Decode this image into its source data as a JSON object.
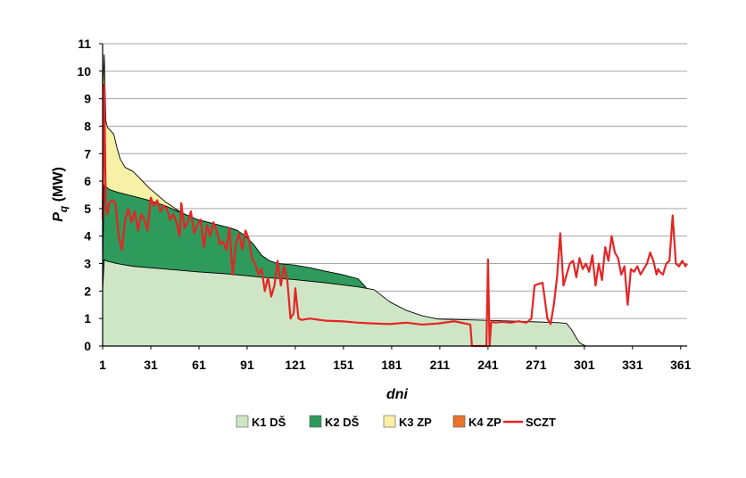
{
  "chart_data": {
    "type": "area",
    "xlabel": "dni",
    "ylabel": "P",
    "ylabel_sub": "q",
    "ylabel_unit": " (MW)",
    "xlim": [
      1,
      365
    ],
    "ylim": [
      0,
      11
    ],
    "x_ticks": [
      "1",
      "31",
      "61",
      "91",
      "121",
      "151",
      "181",
      "211",
      "241",
      "271",
      "301",
      "331",
      "361"
    ],
    "y_ticks": [
      "0",
      "1",
      "2",
      "3",
      "4",
      "5",
      "6",
      "7",
      "8",
      "9",
      "10",
      "11"
    ],
    "grid": true,
    "legend_position": "bottom",
    "colors": {
      "K1": "#cfe6c6",
      "K2": "#2e9a5c",
      "K3": "#f6f1a6",
      "K4": "#e8732a",
      "SCZT": "#e62424",
      "grid": "#a6a6a6"
    },
    "series": [
      {
        "name": "K1 DŠ",
        "kind": "area",
        "x": [
          1,
          2,
          3,
          10,
          20,
          40,
          60,
          80,
          100,
          120,
          140,
          160,
          170,
          180,
          190,
          200,
          210,
          230,
          250,
          270,
          285,
          290,
          293,
          296,
          298,
          300,
          302
        ],
        "values": [
          2.0,
          3.15,
          3.1,
          3.0,
          2.9,
          2.8,
          2.7,
          2.62,
          2.5,
          2.42,
          2.3,
          2.15,
          2.05,
          1.6,
          1.3,
          1.1,
          0.98,
          0.95,
          0.92,
          0.88,
          0.85,
          0.82,
          0.6,
          0.3,
          0.12,
          0.05,
          0.0
        ]
      },
      {
        "name": "K2 DŠ",
        "kind": "area",
        "x": [
          1,
          2,
          3,
          5,
          10,
          20,
          30,
          40,
          50,
          60,
          70,
          80,
          85,
          90,
          95,
          100,
          105,
          110,
          120,
          130,
          140,
          150,
          160,
          164,
          166,
          167
        ],
        "values": [
          3.0,
          5.85,
          5.8,
          5.7,
          5.6,
          5.45,
          5.3,
          5.1,
          4.85,
          4.6,
          4.45,
          4.3,
          4.2,
          4.0,
          3.7,
          3.3,
          3.1,
          3.0,
          2.95,
          2.85,
          2.72,
          2.6,
          2.45,
          2.2,
          2.05,
          1.6
        ]
      },
      {
        "name": "K3 ZP",
        "kind": "area",
        "x": [
          1,
          2,
          3,
          4,
          5,
          8,
          10,
          12,
          15,
          20,
          25,
          30,
          40,
          50,
          60,
          70,
          80,
          85
        ],
        "values": [
          9.0,
          10.6,
          8.2,
          7.95,
          7.9,
          7.7,
          7.2,
          6.8,
          6.5,
          6.35,
          6.05,
          5.75,
          5.25,
          4.85,
          4.6,
          4.45,
          4.3,
          4.2
        ]
      },
      {
        "name": "K4 ZP",
        "kind": "area",
        "x": [
          1,
          2,
          3
        ],
        "values": [
          0,
          0,
          0
        ]
      },
      {
        "name": "SCZT",
        "kind": "line",
        "x": [
          1,
          2,
          3,
          4,
          5,
          7,
          9,
          11,
          13,
          15,
          17,
          19,
          21,
          23,
          25,
          27,
          29,
          31,
          33,
          35,
          37,
          39,
          41,
          43,
          45,
          47,
          49,
          50,
          52,
          54,
          56,
          58,
          60,
          62,
          64,
          66,
          68,
          70,
          72,
          74,
          76,
          78,
          80,
          82,
          84,
          86,
          88,
          90,
          92,
          94,
          96,
          98,
          100,
          102,
          104,
          106,
          108,
          110,
          112,
          114,
          116,
          118,
          120,
          121,
          123,
          125,
          130,
          140,
          150,
          160,
          170,
          180,
          190,
          200,
          210,
          220,
          230,
          231,
          235,
          240,
          241,
          242,
          243,
          244,
          245,
          250,
          255,
          260,
          265,
          268,
          270,
          272,
          275,
          278,
          280,
          282,
          284,
          286,
          288,
          290,
          292,
          294,
          296,
          298,
          300,
          302,
          304,
          306,
          308,
          310,
          312,
          314,
          316,
          318,
          320,
          322,
          324,
          326,
          328,
          330,
          332,
          334,
          336,
          338,
          340,
          342,
          344,
          346,
          347,
          348,
          350,
          352,
          354,
          356,
          358,
          360,
          362,
          364,
          365
        ],
        "values": [
          4.6,
          9.5,
          5.0,
          4.8,
          5.2,
          5.3,
          5.2,
          4.0,
          3.5,
          4.6,
          5.0,
          4.5,
          4.9,
          4.2,
          4.8,
          4.6,
          4.2,
          5.4,
          5.1,
          5.3,
          4.9,
          5.1,
          5.0,
          4.6,
          4.8,
          4.5,
          4.0,
          5.2,
          4.3,
          4.5,
          4.9,
          4.1,
          4.4,
          4.6,
          3.6,
          4.4,
          4.0,
          4.5,
          4.2,
          3.7,
          3.8,
          3.5,
          4.3,
          2.6,
          3.7,
          4.1,
          3.5,
          4.2,
          3.9,
          3.2,
          3.0,
          2.6,
          2.8,
          2.0,
          2.5,
          1.8,
          2.2,
          3.1,
          2.2,
          2.9,
          2.4,
          1.0,
          1.2,
          2.1,
          1.0,
          0.95,
          1.0,
          0.92,
          0.9,
          0.85,
          0.82,
          0.8,
          0.85,
          0.78,
          0.82,
          0.9,
          0.78,
          0.0,
          0.0,
          0.0,
          3.15,
          0.0,
          0.85,
          0.9,
          0.85,
          0.88,
          0.85,
          0.9,
          0.85,
          1.0,
          2.2,
          2.25,
          2.3,
          1.0,
          0.8,
          1.5,
          2.5,
          4.1,
          2.2,
          2.6,
          3.0,
          3.1,
          2.5,
          3.2,
          2.8,
          3.0,
          2.7,
          3.3,
          2.2,
          3.0,
          2.4,
          3.6,
          3.1,
          4.0,
          3.4,
          3.2,
          2.6,
          2.9,
          1.5,
          2.8,
          2.7,
          2.9,
          2.6,
          2.8,
          3.0,
          3.4,
          3.1,
          2.6,
          2.8,
          2.7,
          2.6,
          3.0,
          3.1,
          4.75,
          3.0,
          2.9,
          3.1,
          2.9,
          3.0
        ]
      }
    ],
    "legend": [
      {
        "label": "K1 DŠ",
        "kind": "box",
        "color": "#cfe6c6"
      },
      {
        "label": "K2 DŠ",
        "kind": "box",
        "color": "#2e9a5c"
      },
      {
        "label": "K3 ZP",
        "kind": "box",
        "color": "#f6f1a6"
      },
      {
        "label": "K4 ZP",
        "kind": "box",
        "color": "#e8732a"
      },
      {
        "label": "SCZT",
        "kind": "line",
        "color": "#e62424"
      }
    ]
  }
}
